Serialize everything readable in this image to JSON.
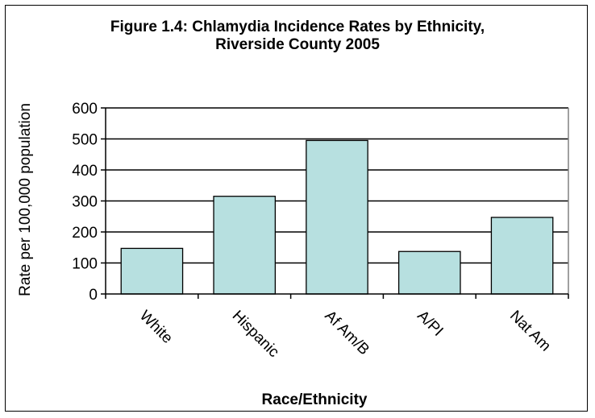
{
  "chart_data": {
    "type": "bar",
    "title_line1": "Figure 1.4: Chlamydia Incidence Rates by Ethnicity,",
    "title_line2": "Riverside County 2005",
    "xlabel": "Race/Ethnicity",
    "ylabel": "Rate per 100,000 population",
    "categories": [
      "White",
      "Hispanic",
      "Af Am/B",
      "A/PI",
      "Nat Am"
    ],
    "values": [
      147,
      315,
      495,
      137,
      247
    ],
    "ylim": [
      0,
      600
    ],
    "yticks": [
      0,
      100,
      200,
      300,
      400,
      500,
      600
    ],
    "grid": true,
    "legend": "none",
    "colors": {
      "bar_fill": "#b7e0e0",
      "bar_stroke": "#000000",
      "plot_border": "#808080",
      "gridline": "#000000"
    }
  }
}
